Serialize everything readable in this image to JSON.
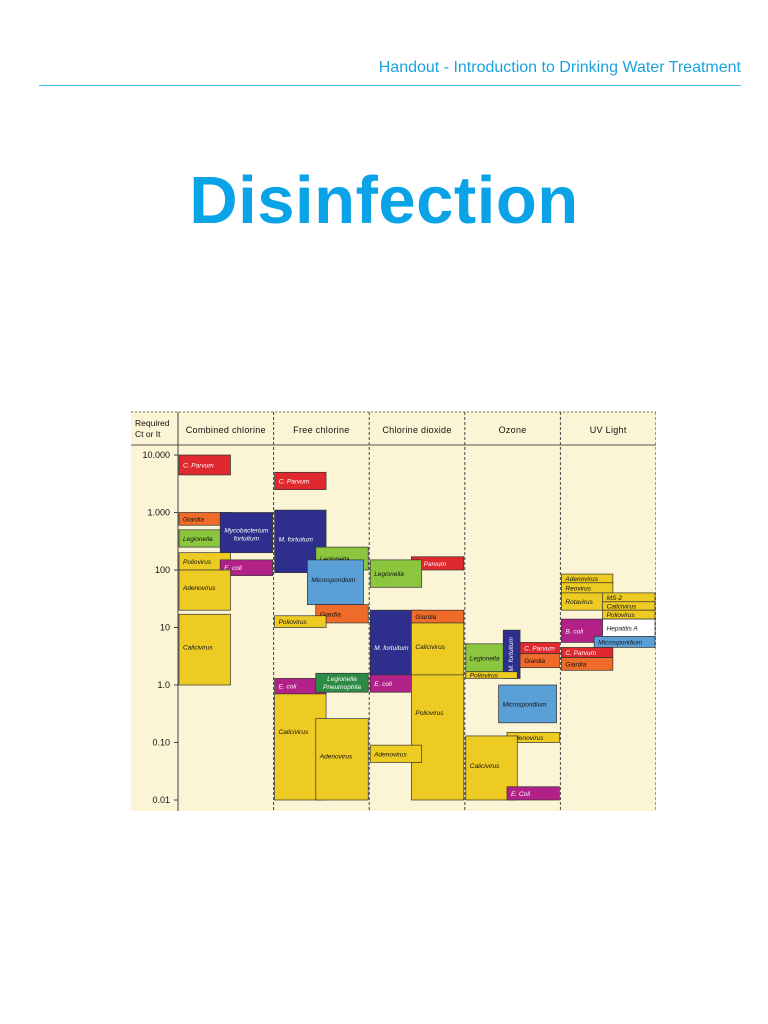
{
  "header": {
    "title": "Handout - Introduction to Drinking Water Treatment"
  },
  "page_title": "Disinfection",
  "chart_data": {
    "type": "bar",
    "ylabel": "Required\nCt or It",
    "yscale": "log",
    "ylim": [
      0.01,
      10000
    ],
    "yticks": [
      {
        "value": 10000,
        "label": "10.000"
      },
      {
        "value": 1000,
        "label": "1.000"
      },
      {
        "value": 100,
        "label": "100"
      },
      {
        "value": 10,
        "label": "10"
      },
      {
        "value": 1,
        "label": "1.0"
      },
      {
        "value": 0.1,
        "label": "0.10"
      },
      {
        "value": 0.01,
        "label": "0.01"
      }
    ],
    "categories": [
      "Combined chlorine",
      "Free chlorine",
      "Chlorine dioxide",
      "Ozone",
      "UV Light"
    ],
    "colors": {
      "red": "#e0282f",
      "orange": "#ef6b2a",
      "green": "#8cc63f",
      "navy": "#2e2f8c",
      "yellow": "#eecb23",
      "purple": "#b22187",
      "blue": "#5a9fd6",
      "darkgreen": "#2e8b45",
      "white": "#ffffff"
    },
    "series": [
      {
        "label": "C. Parvum",
        "column": 0,
        "slot": [
          0,
          0.55
        ],
        "low": 4500,
        "high": 10000,
        "color": "red"
      },
      {
        "label": "Giardia",
        "column": 0,
        "slot": [
          0,
          0.55
        ],
        "low": 600,
        "high": 1000,
        "color": "orange"
      },
      {
        "label": "Legionella",
        "column": 0,
        "slot": [
          0,
          0.55
        ],
        "low": 250,
        "high": 500,
        "color": "green"
      },
      {
        "label": "Mycobacterium\nfortuitum",
        "column": 0,
        "slot": [
          0.44,
          1.0
        ],
        "low": 200,
        "high": 1000,
        "color": "navy"
      },
      {
        "label": "Poliovirus",
        "column": 0,
        "slot": [
          0,
          0.55
        ],
        "low": 100,
        "high": 200,
        "color": "yellow"
      },
      {
        "label": "E. coli",
        "column": 0,
        "slot": [
          0.44,
          1.0
        ],
        "low": 80,
        "high": 150,
        "color": "purple"
      },
      {
        "label": "Adenovirus",
        "column": 0,
        "slot": [
          0,
          0.55
        ],
        "low": 20,
        "high": 100,
        "color": "yellow"
      },
      {
        "label": "Calicivirus",
        "column": 0,
        "slot": [
          0,
          0.55
        ],
        "low": 1,
        "high": 17,
        "color": "yellow"
      },
      {
        "label": "C. Parvum",
        "column": 1,
        "slot": [
          0,
          0.55
        ],
        "low": 2500,
        "high": 5000,
        "color": "red"
      },
      {
        "label": "M. fortuitum",
        "column": 1,
        "slot": [
          0,
          0.55
        ],
        "low": 90,
        "high": 1100,
        "color": "navy"
      },
      {
        "label": "Legionella",
        "column": 1,
        "slot": [
          0.44,
          1.0
        ],
        "low": 100,
        "high": 250,
        "color": "green"
      },
      {
        "label": "Microsporidium",
        "column": 1,
        "slot": [
          0.35,
          0.95
        ],
        "low": 25,
        "high": 150,
        "color": "blue"
      },
      {
        "label": "Giardia",
        "column": 1,
        "slot": [
          0.44,
          1.0
        ],
        "low": 12,
        "high": 25,
        "color": "orange"
      },
      {
        "label": "Poliovirus",
        "column": 1,
        "slot": [
          0,
          0.55
        ],
        "low": 10,
        "high": 16,
        "color": "yellow"
      },
      {
        "label": "E. coli",
        "column": 1,
        "slot": [
          0,
          0.55
        ],
        "low": 0.7,
        "high": 1.3,
        "color": "purple"
      },
      {
        "label": "Legionella\nPneumophila",
        "column": 1,
        "slot": [
          0.44,
          1.0
        ],
        "low": 0.75,
        "high": 1.6,
        "color": "darkgreen"
      },
      {
        "label": "Calicivirus",
        "column": 1,
        "slot": [
          0,
          0.55
        ],
        "low": 0.01,
        "high": 0.7,
        "color": "yellow"
      },
      {
        "label": "Adenovirus",
        "column": 1,
        "slot": [
          0.44,
          1.0
        ],
        "low": 0.01,
        "high": 0.26,
        "color": "yellow"
      },
      {
        "label": "C. Parvum",
        "column": 2,
        "slot": [
          0.44,
          1.0
        ],
        "low": 100,
        "high": 170,
        "color": "red"
      },
      {
        "label": "Legionella",
        "column": 2,
        "slot": [
          0,
          0.55
        ],
        "low": 50,
        "high": 150,
        "color": "green"
      },
      {
        "label": "M. fortuitum",
        "column": 2,
        "slot": [
          0,
          0.55
        ],
        "low": 0.75,
        "high": 20,
        "color": "navy"
      },
      {
        "label": "Giardia",
        "column": 2,
        "slot": [
          0.44,
          1.0
        ],
        "low": 12,
        "high": 20,
        "color": "orange"
      },
      {
        "label": "Calicivirus",
        "column": 2,
        "slot": [
          0.44,
          1.0
        ],
        "low": 1.5,
        "high": 12,
        "color": "yellow"
      },
      {
        "label": "E. coli",
        "column": 2,
        "slot": [
          0,
          0.55
        ],
        "low": 0.75,
        "high": 1.5,
        "color": "purple"
      },
      {
        "label": "Poliovirus",
        "column": 2,
        "slot": [
          0.44,
          1.0
        ],
        "low": 0.01,
        "high": 1.5,
        "color": "yellow"
      },
      {
        "label": "Adenovirus",
        "column": 2,
        "slot": [
          0,
          0.55
        ],
        "low": 0.045,
        "high": 0.09,
        "color": "yellow"
      },
      {
        "label": "Legionella",
        "column": 3,
        "slot": [
          0,
          0.55
        ],
        "low": 1.7,
        "high": 5.2,
        "color": "green"
      },
      {
        "label": "M. fortuitum",
        "column": 3,
        "slot": [
          0.4,
          0.58
        ],
        "low": 1.3,
        "high": 9,
        "color": "navy",
        "vertical": true
      },
      {
        "label": "C. Parvum",
        "column": 3,
        "slot": [
          0.58,
          1.0
        ],
        "low": 3.5,
        "high": 5.5,
        "color": "red"
      },
      {
        "label": "Giardia",
        "column": 3,
        "slot": [
          0.58,
          1.0
        ],
        "low": 2,
        "high": 3.5,
        "color": "orange"
      },
      {
        "label": "Poliovirus",
        "column": 3,
        "slot": [
          0,
          0.55
        ],
        "low": 1.3,
        "high": 1.7,
        "color": "yellow"
      },
      {
        "label": "Microsporidium",
        "column": 3,
        "slot": [
          0.35,
          0.97
        ],
        "low": 0.22,
        "high": 1.0,
        "color": "blue"
      },
      {
        "label": "Adenovirus",
        "column": 3,
        "slot": [
          0.44,
          1.0
        ],
        "low": 0.1,
        "high": 0.15,
        "color": "yellow"
      },
      {
        "label": "Calicivirus",
        "column": 3,
        "slot": [
          0,
          0.55
        ],
        "low": 0.01,
        "high": 0.13,
        "color": "yellow"
      },
      {
        "label": "E. Coli",
        "column": 3,
        "slot": [
          0.44,
          1.0
        ],
        "low": 0.01,
        "high": 0.017,
        "color": "purple"
      },
      {
        "label": "Adenovirus",
        "column": 4,
        "slot": [
          0,
          0.55
        ],
        "low": 60,
        "high": 85,
        "color": "yellow"
      },
      {
        "label": "Reovirus",
        "column": 4,
        "slot": [
          0,
          0.55
        ],
        "low": 40,
        "high": 60,
        "color": "yellow"
      },
      {
        "label": "Rotavirus",
        "column": 4,
        "slot": [
          0,
          0.55
        ],
        "low": 20,
        "high": 40,
        "color": "yellow"
      },
      {
        "label": "MS-2",
        "column": 4,
        "slot": [
          0.44,
          1.0
        ],
        "low": 28,
        "high": 40,
        "color": "yellow"
      },
      {
        "label": "Calicivirus",
        "column": 4,
        "slot": [
          0.44,
          1.0
        ],
        "low": 20,
        "high": 28,
        "color": "yellow"
      },
      {
        "label": "Poliovirus",
        "column": 4,
        "slot": [
          0.44,
          1.0
        ],
        "low": 14,
        "high": 20,
        "color": "yellow"
      },
      {
        "label": "B. coli",
        "column": 4,
        "slot": [
          0,
          0.47
        ],
        "low": 5.5,
        "high": 14,
        "color": "purple"
      },
      {
        "label": "Hepatitis A",
        "column": 4,
        "slot": [
          0.44,
          1.0
        ],
        "low": 7,
        "high": 14,
        "color": "white"
      },
      {
        "label": "Microsporidium",
        "column": 4,
        "slot": [
          0.35,
          1.0
        ],
        "low": 4.5,
        "high": 7,
        "color": "blue"
      },
      {
        "label": "C. Parvum",
        "column": 4,
        "slot": [
          0,
          0.55
        ],
        "low": 3,
        "high": 4.5,
        "color": "red"
      },
      {
        "label": "Giardia",
        "column": 4,
        "slot": [
          0,
          0.55
        ],
        "low": 1.8,
        "high": 3,
        "color": "orange"
      }
    ]
  }
}
